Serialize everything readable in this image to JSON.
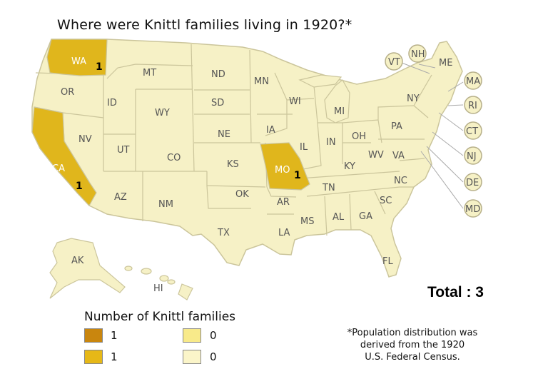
{
  "title": "Where were Knittl families living in 1920?*",
  "colors": {
    "land": "#f6f1c6",
    "border": "#cbc59b",
    "highlight": "#e0b61c",
    "legend_dark": "#c9860e",
    "legend_mid": "#e6b817",
    "legend_light": "#f8ea8a",
    "legend_pale": "#fbf5c9"
  },
  "states": {
    "WA": "WA",
    "OR": "OR",
    "CA": "CA",
    "NV": "NV",
    "ID": "ID",
    "MT": "MT",
    "WY": "WY",
    "UT": "UT",
    "AZ": "AZ",
    "CO": "CO",
    "NM": "NM",
    "ND": "ND",
    "SD": "SD",
    "NE": "NE",
    "KS": "KS",
    "OK": "OK",
    "TX": "TX",
    "MN": "MN",
    "IA": "IA",
    "MO": "MO",
    "AR": "AR",
    "LA": "LA",
    "WI": "WI",
    "IL": "IL",
    "MI": "MI",
    "IN": "IN",
    "OH": "OH",
    "KY": "KY",
    "TN": "TN",
    "MS": "MS",
    "AL": "AL",
    "GA": "GA",
    "FL": "FL",
    "SC": "SC",
    "NC": "NC",
    "VA": "VA",
    "WV": "WV",
    "PA": "PA",
    "NY": "NY",
    "ME": "ME",
    "VT": "VT",
    "NH": "NH",
    "MA": "MA",
    "RI": "RI",
    "CT": "CT",
    "NJ": "NJ",
    "DE": "DE",
    "MD": "MD",
    "AK": "AK",
    "HI": "HI"
  },
  "counts": {
    "WA": "1",
    "CA": "1",
    "MO": "1"
  },
  "total": "Total : 3",
  "legend": {
    "title": "Number of Knittl families",
    "items": [
      {
        "label": "1",
        "color": "#c9860e"
      },
      {
        "label": "1",
        "color": "#e6b817"
      },
      {
        "label": "0",
        "color": "#f8ea8a"
      },
      {
        "label": "0",
        "color": "#fbf5c9"
      }
    ]
  },
  "note": {
    "line1": "*Population distribution was",
    "line2": "derived from the 1920",
    "line3": "U.S. Federal Census."
  }
}
